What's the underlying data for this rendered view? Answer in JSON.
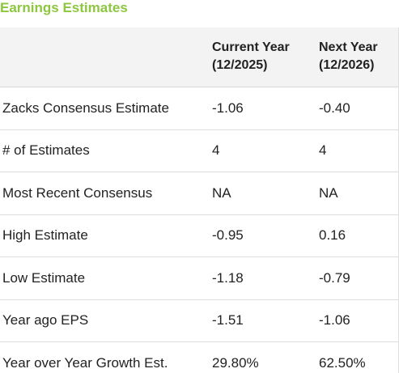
{
  "title": "Earnings Estimates",
  "columns": [
    {
      "line1": "Current Year",
      "line2": "(12/2025)"
    },
    {
      "line1": "Next Year",
      "line2": "(12/2026)"
    }
  ],
  "rows": [
    {
      "label": "Zacks Consensus Estimate",
      "current": "-1.06",
      "next": "-0.40"
    },
    {
      "label": "# of Estimates",
      "current": "4",
      "next": "4"
    },
    {
      "label": "Most Recent Consensus",
      "current": "NA",
      "next": "NA"
    },
    {
      "label": "High Estimate",
      "current": "-0.95",
      "next": "0.16"
    },
    {
      "label": "Low Estimate",
      "current": "-1.18",
      "next": "-0.79"
    },
    {
      "label": "Year ago EPS",
      "current": "-1.51",
      "next": "-1.06"
    },
    {
      "label": "Year over Year Growth Est.",
      "current": "29.80%",
      "next": "62.50%"
    }
  ],
  "colors": {
    "title": "#8dc63f",
    "header_bg": "#f3f3f3",
    "text": "#222222"
  }
}
